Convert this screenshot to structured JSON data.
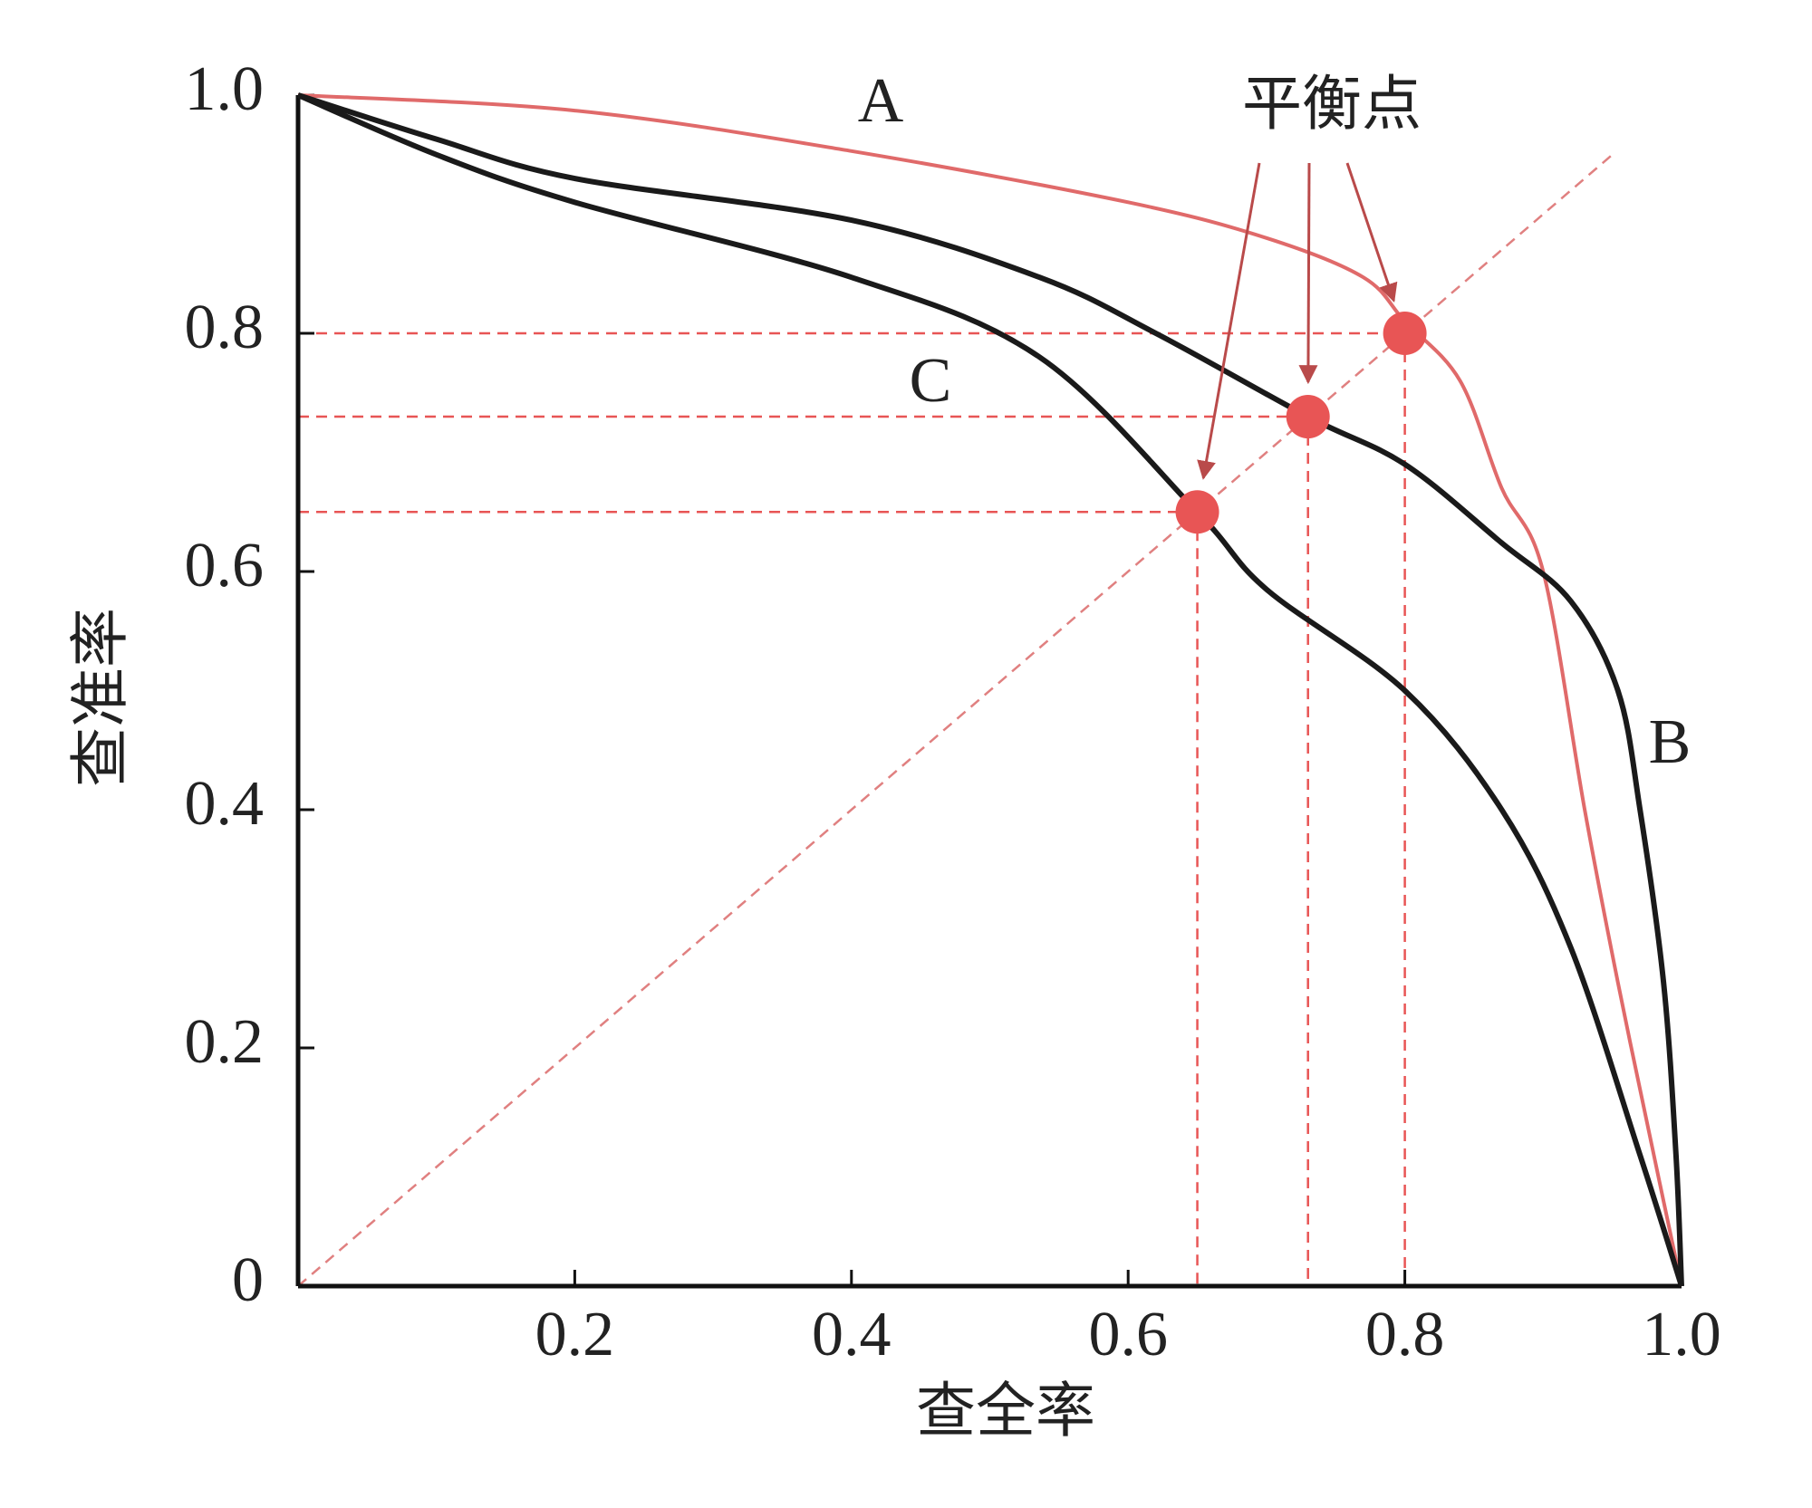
{
  "chart_data": {
    "type": "line",
    "x_label": "查全率",
    "y_label": "查准率",
    "xlim": [
      0,
      1
    ],
    "ylim": [
      0,
      1
    ],
    "xticks": [
      0.2,
      0.4,
      0.6,
      0.8,
      {
        "value": 1,
        "label": "1.0"
      }
    ],
    "yticks": [
      0,
      0.2,
      0.4,
      0.6,
      0.8,
      {
        "value": 1,
        "label": "1.0"
      }
    ],
    "series": [
      {
        "name": "A",
        "color": "#e06a6a",
        "x": [
          0,
          0.2,
          0.4,
          0.6,
          0.7,
          0.77,
          0.8,
          0.84,
          0.87,
          0.9,
          0.93,
          0.954,
          0.98,
          1
        ],
        "values": [
          1,
          0.987,
          0.953,
          0.91,
          0.88,
          0.847,
          0.81,
          0.76,
          0.67,
          0.6,
          0.4,
          0.255,
          0.11,
          0
        ]
      },
      {
        "name": "B",
        "color": "#1a1a1a",
        "x": [
          0,
          0.1,
          0.2,
          0.4,
          0.536,
          0.62,
          0.73,
          0.8,
          0.87,
          0.92,
          0.954,
          0.97,
          0.987,
          0.996,
          1
        ],
        "values": [
          1,
          0.963,
          0.93,
          0.895,
          0.847,
          0.8,
          0.73,
          0.69,
          0.624,
          0.575,
          0.5,
          0.4,
          0.255,
          0.11,
          0
        ]
      },
      {
        "name": "C",
        "color": "#1a1a1a",
        "x": [
          0,
          0.1,
          0.2,
          0.4,
          0.536,
          0.65,
          0.7,
          0.8,
          0.87,
          0.92,
          0.97,
          1
        ],
        "values": [
          1,
          0.95,
          0.91,
          0.847,
          0.78,
          0.65,
          0.585,
          0.5,
          0.4,
          0.284,
          0.11,
          0
        ]
      }
    ],
    "break_even": {
      "label": "平衡点",
      "color": "#e85555",
      "x": [
        0.65,
        0.73,
        0.8
      ],
      "values": [
        0.65,
        0.73,
        0.8
      ]
    },
    "diagonal": {
      "color": "#e08080",
      "x": [
        0,
        0.95
      ],
      "values": [
        0,
        0.95
      ]
    }
  }
}
